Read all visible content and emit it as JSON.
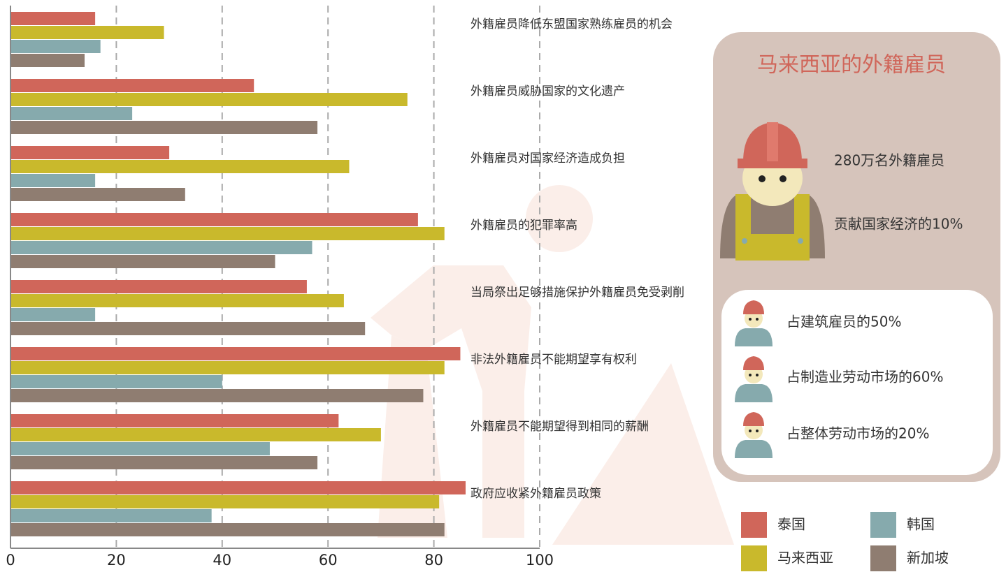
{
  "chart_data": {
    "type": "bar",
    "orientation": "horizontal",
    "categories": [
      "外籍雇员降低东盟国家熟练雇员的机会",
      "外籍雇员威胁国家的文化遗产",
      "外籍雇员对国家经济造成负担",
      "外籍雇员的犯罪率高",
      "当局祭出足够措施保护外籍雇员免受剥削",
      "非法外籍雇员不能期望享有权利",
      "外籍雇员不能期望得到相同的薪酬",
      "政府应收紧外籍雇员政策"
    ],
    "series": [
      {
        "name": "泰国",
        "color": "#d0665a",
        "values": [
          16,
          46,
          30,
          77,
          56,
          85,
          62,
          86
        ]
      },
      {
        "name": "马来西亚",
        "color": "#c9b92c",
        "values": [
          29,
          75,
          64,
          82,
          63,
          82,
          70,
          81
        ]
      },
      {
        "name": "韩国",
        "color": "#86aaad",
        "values": [
          17,
          23,
          16,
          57,
          16,
          40,
          49,
          38
        ]
      },
      {
        "name": "新加坡",
        "color": "#8f7d71",
        "values": [
          14,
          58,
          33,
          50,
          67,
          78,
          58,
          82
        ]
      }
    ],
    "xlim": [
      0,
      100
    ],
    "xticks": [
      0,
      20,
      40,
      60,
      80,
      100
    ],
    "grid": true
  },
  "panel": {
    "title": "马来西亚的外籍雇员",
    "facts": [
      "280万名外籍雇员",
      "贡献国家经济的10%"
    ],
    "shares": [
      "占建筑雇员的50%",
      "占制造业劳动市场的60%",
      "占整体劳动市场的20%"
    ]
  }
}
